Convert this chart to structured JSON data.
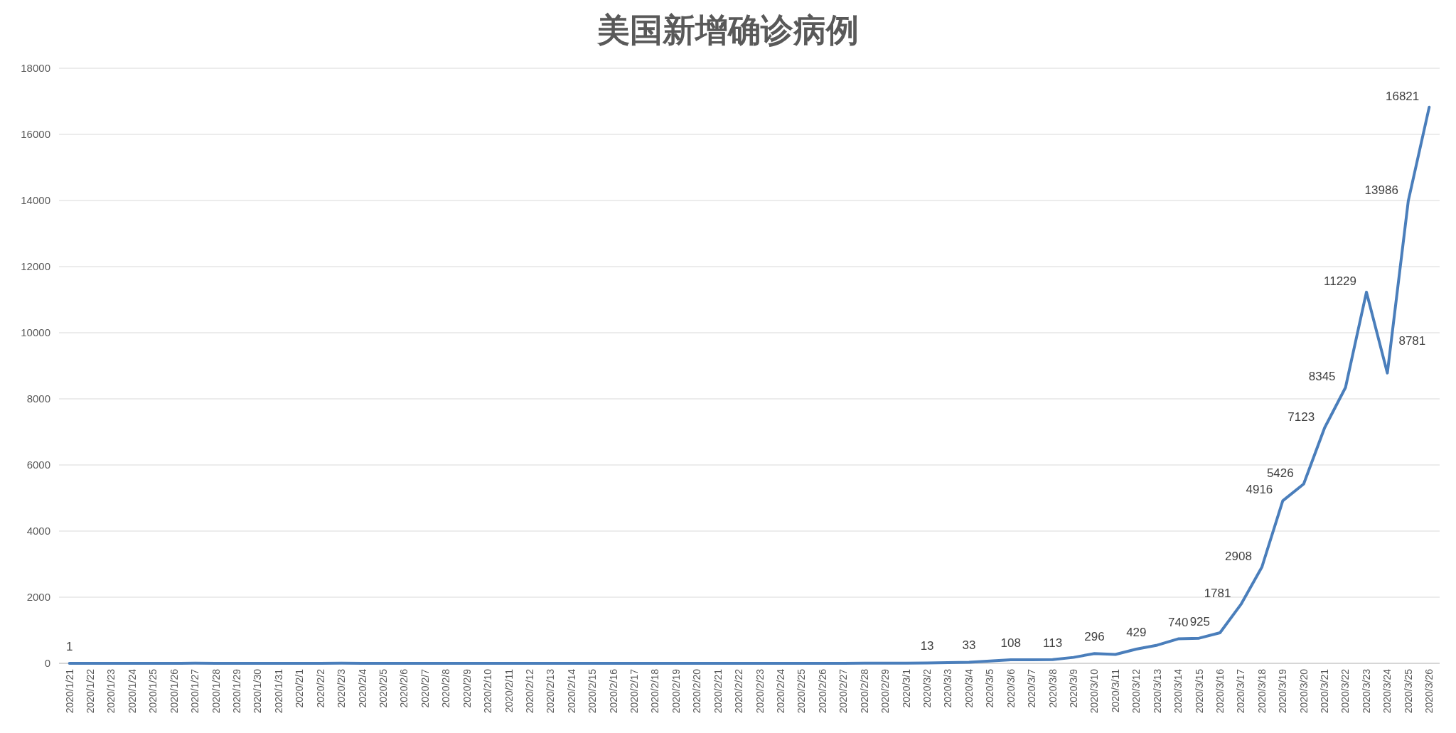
{
  "chart_data": {
    "type": "line",
    "title": "美国新增确诊病例",
    "categories": [
      "2020/1/21",
      "2020/1/22",
      "2020/1/23",
      "2020/1/24",
      "2020/1/25",
      "2020/1/26",
      "2020/1/27",
      "2020/1/28",
      "2020/1/29",
      "2020/1/30",
      "2020/1/31",
      "2020/2/1",
      "2020/2/2",
      "2020/2/3",
      "2020/2/4",
      "2020/2/5",
      "2020/2/6",
      "2020/2/7",
      "2020/2/8",
      "2020/2/9",
      "2020/2/10",
      "2020/2/11",
      "2020/2/12",
      "2020/2/13",
      "2020/2/14",
      "2020/2/15",
      "2020/2/16",
      "2020/2/17",
      "2020/2/18",
      "2020/2/19",
      "2020/2/20",
      "2020/2/21",
      "2020/2/22",
      "2020/2/23",
      "2020/2/24",
      "2020/2/25",
      "2020/2/26",
      "2020/2/27",
      "2020/2/28",
      "2020/2/29",
      "2020/3/1",
      "2020/3/2",
      "2020/3/3",
      "2020/3/4",
      "2020/3/5",
      "2020/3/6",
      "2020/3/7",
      "2020/3/8",
      "2020/3/9",
      "2020/3/10",
      "2020/3/11",
      "2020/3/12",
      "2020/3/13",
      "2020/3/14",
      "2020/3/15",
      "2020/3/16",
      "2020/3/17",
      "2020/3/18",
      "2020/3/19",
      "2020/3/20",
      "2020/3/21",
      "2020/3/22",
      "2020/3/23",
      "2020/3/24",
      "2020/3/25",
      "2020/3/26"
    ],
    "series": [
      {
        "color": "#4a7ebb",
        "values": [
          1,
          0,
          0,
          1,
          0,
          0,
          3,
          0,
          0,
          0,
          1,
          1,
          1,
          3,
          0,
          1,
          0,
          0,
          0,
          0,
          0,
          0,
          1,
          0,
          0,
          0,
          0,
          0,
          0,
          0,
          0,
          2,
          0,
          0,
          2,
          0,
          2,
          0,
          3,
          3,
          8,
          13,
          20,
          33,
          70,
          108,
          105,
          113,
          180,
          296,
          270,
          429,
          550,
          740,
          760,
          925,
          1781,
          2908,
          4916,
          5426,
          7123,
          8345,
          11229,
          8781,
          13986,
          16821
        ],
        "value_labels": [
          "1",
          null,
          null,
          null,
          null,
          null,
          null,
          null,
          null,
          null,
          null,
          null,
          null,
          null,
          null,
          null,
          null,
          null,
          null,
          null,
          null,
          null,
          null,
          null,
          null,
          null,
          null,
          null,
          null,
          null,
          null,
          null,
          null,
          null,
          null,
          null,
          null,
          null,
          null,
          null,
          null,
          "13",
          null,
          "33",
          null,
          "108",
          null,
          "113",
          null,
          "296",
          null,
          "429",
          null,
          "740",
          null,
          "925",
          "1781",
          "2908",
          "4916",
          "5426",
          "7123",
          "8345",
          "11229",
          "8781",
          "13986",
          "16821"
        ]
      }
    ],
    "ylim": [
      0,
      18000
    ],
    "yticks": [
      0,
      2000,
      4000,
      6000,
      8000,
      10000,
      12000,
      14000,
      16000,
      18000
    ],
    "grid": "y",
    "marker": "none",
    "line_style": "solid"
  }
}
